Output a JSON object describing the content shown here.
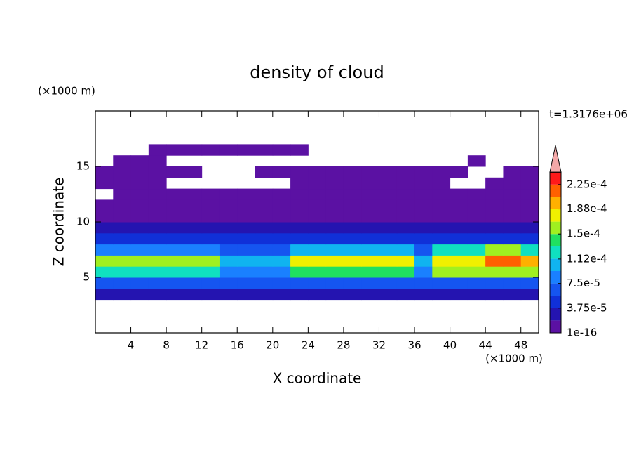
{
  "chart_data": {
    "type": "contour",
    "title": "density of cloud",
    "xlabel": "X coordinate",
    "ylabel": "Z coordinate",
    "xunit": "(×1000 m)",
    "yunit": "(×1000 m)",
    "annotation": "t=1.3176e+06",
    "xlim": [
      0,
      50
    ],
    "ylim": [
      0,
      20
    ],
    "xticks": [
      4,
      8,
      12,
      16,
      20,
      24,
      28,
      32,
      36,
      40,
      44,
      48
    ],
    "yticks": [
      5,
      10,
      15
    ],
    "x": [
      1,
      3,
      5,
      7,
      9,
      11,
      13,
      15,
      17,
      19,
      21,
      23,
      25,
      27,
      29,
      31,
      33,
      35,
      37,
      39,
      41,
      43,
      45,
      47,
      49
    ],
    "y": [
      3.5,
      4.5,
      5.5,
      6.5,
      7.5,
      8.5,
      9.5,
      10.5,
      11.5,
      12.5,
      13.5,
      14.5,
      15.5,
      16.5
    ],
    "z": [
      [
        2e-05,
        2e-05,
        2e-05,
        2e-05,
        2e-05,
        2e-05,
        2e-05,
        2e-05,
        2e-05,
        2e-05,
        2e-05,
        2e-05,
        2e-05,
        2e-05,
        2e-05,
        2e-05,
        2e-05,
        2e-05,
        2e-05,
        2e-05,
        2e-05,
        2e-05,
        2e-05,
        2e-05,
        2e-05
      ],
      [
        6e-05,
        6e-05,
        6e-05,
        6e-05,
        6e-05,
        6e-05,
        6e-05,
        6e-05,
        6e-05,
        6e-05,
        6e-05,
        6e-05,
        6e-05,
        6e-05,
        6e-05,
        6e-05,
        6e-05,
        6e-05,
        6e-05,
        6e-05,
        6e-05,
        6e-05,
        6e-05,
        6e-05,
        6e-05
      ],
      [
        0.00013,
        0.00013,
        0.00013,
        0.00013,
        0.00013,
        0.00013,
        0.00013,
        9e-05,
        9e-05,
        9e-05,
        9e-05,
        0.00014,
        0.00014,
        0.00014,
        0.00014,
        0.00014,
        0.00014,
        0.00014,
        9e-05,
        0.00015,
        0.00015,
        0.00015,
        0.00015,
        0.00015,
        0.00015
      ],
      [
        0.000165,
        0.000165,
        0.000165,
        0.000165,
        0.000165,
        0.000165,
        0.000165,
        0.0001,
        0.0001,
        0.0001,
        0.0001,
        0.000175,
        0.000175,
        0.000175,
        0.000175,
        0.000175,
        0.000175,
        0.000175,
        0.00011,
        0.00017,
        0.00017,
        0.00017,
        0.00021,
        0.00021,
        0.00019
      ],
      [
        9e-05,
        9e-05,
        9e-05,
        9e-05,
        9e-05,
        9e-05,
        9e-05,
        6e-05,
        6e-05,
        6e-05,
        6e-05,
        0.00011,
        0.00011,
        0.00011,
        0.00011,
        0.00011,
        0.00011,
        0.00011,
        6e-05,
        0.00012,
        0.00012,
        0.00012,
        0.00016,
        0.00016,
        0.00013
      ],
      [
        4e-05,
        4e-05,
        4e-05,
        4e-05,
        4e-05,
        4e-05,
        4e-05,
        4e-05,
        4e-05,
        4e-05,
        4e-05,
        4e-05,
        4e-05,
        4e-05,
        4e-05,
        4e-05,
        4e-05,
        4e-05,
        4e-05,
        4e-05,
        4e-05,
        4e-05,
        4e-05,
        4e-05,
        4e-05
      ],
      [
        2.5e-05,
        2.5e-05,
        2.5e-05,
        2.5e-05,
        2.5e-05,
        2.5e-05,
        2.5e-05,
        2.5e-05,
        2.5e-05,
        2.5e-05,
        2.5e-05,
        2.5e-05,
        2.5e-05,
        2.5e-05,
        2.5e-05,
        2.5e-05,
        2.5e-05,
        2.5e-05,
        2.5e-05,
        2.5e-05,
        2.5e-05,
        2.5e-05,
        2.5e-05,
        2.5e-05,
        2.5e-05
      ],
      [
        1.5e-05,
        1.5e-05,
        1.5e-05,
        1.5e-05,
        1.5e-05,
        1.5e-05,
        1.5e-05,
        1.5e-05,
        1.5e-05,
        1.5e-05,
        1.5e-05,
        1.5e-05,
        1.5e-05,
        1.5e-05,
        1.5e-05,
        1.5e-05,
        1.5e-05,
        1.5e-05,
        1.5e-05,
        1.5e-05,
        1.5e-05,
        1.5e-05,
        1.5e-05,
        1.5e-05,
        1.5e-05
      ],
      [
        1.5e-05,
        1.5e-05,
        1.5e-05,
        1.5e-05,
        1.5e-05,
        1.5e-05,
        1.5e-05,
        1.5e-05,
        1.5e-05,
        1.5e-05,
        1.5e-05,
        1.5e-05,
        1.5e-05,
        1.5e-05,
        1.5e-05,
        1.5e-05,
        1.5e-05,
        1.5e-05,
        1.5e-05,
        1.5e-05,
        1.5e-05,
        1.5e-05,
        1.5e-05,
        1.5e-05,
        1.5e-05
      ],
      [
        null,
        1e-05,
        1e-05,
        1e-05,
        1e-05,
        1e-05,
        1e-05,
        1e-05,
        1e-05,
        1e-05,
        1e-05,
        1e-05,
        1e-05,
        1e-05,
        1e-05,
        1e-05,
        1e-05,
        1e-05,
        1e-05,
        1e-05,
        1e-05,
        1e-05,
        1e-05,
        1e-05,
        1e-05
      ],
      [
        1e-05,
        1e-05,
        1e-05,
        1e-05,
        null,
        null,
        null,
        null,
        null,
        null,
        null,
        1e-05,
        1e-05,
        1e-05,
        1e-05,
        1e-05,
        1e-05,
        1e-05,
        1e-05,
        1e-05,
        null,
        null,
        1e-05,
        1e-05,
        1e-05
      ],
      [
        1e-05,
        1e-05,
        1e-05,
        1e-05,
        1e-05,
        1e-05,
        null,
        null,
        null,
        1e-05,
        1e-05,
        1e-05,
        1e-05,
        1e-05,
        1e-05,
        1e-05,
        1e-05,
        1e-05,
        1e-05,
        1e-05,
        1e-05,
        null,
        null,
        1e-05,
        1e-05
      ],
      [
        null,
        1e-05,
        1e-05,
        1e-05,
        null,
        null,
        null,
        null,
        null,
        null,
        null,
        null,
        null,
        null,
        null,
        null,
        null,
        null,
        null,
        null,
        null,
        1e-05,
        null,
        null,
        null
      ],
      [
        null,
        null,
        null,
        1e-05,
        1e-05,
        1e-05,
        1e-05,
        1e-05,
        1e-05,
        1e-05,
        1e-05,
        1e-05,
        null,
        null,
        null,
        null,
        null,
        null,
        null,
        null,
        null,
        null,
        null,
        null,
        null
      ]
    ],
    "levels": [
      1e-16,
      1.875e-05,
      3.75e-05,
      5.625e-05,
      7.5e-05,
      9.375e-05,
      0.0001125,
      0.00013125,
      0.00015,
      0.00016875,
      0.0001875,
      0.00020625,
      0.000225,
      0.00024375
    ],
    "colors": [
      "#5b11a3",
      "#2414b0",
      "#1030d8",
      "#1555f0",
      "#1a80ff",
      "#10b4f0",
      "#10e0c0",
      "#20e060",
      "#a0f020",
      "#f0f000",
      "#ffb000",
      "#ff6000",
      "#ff1a1a"
    ],
    "extend_color": "#f4a8a8",
    "cticks": [
      1e-16,
      {
        "value": 3.75e-05,
        "label": "3.75e-5"
      },
      {
        "value": 7.5e-05,
        "label": "7.5e-5"
      },
      {
        "value": 0.000112,
        "label": "1.12e-4"
      },
      {
        "value": 0.00015,
        "label": "1.5e-4"
      },
      {
        "value": 0.000188,
        "label": "1.88e-4"
      },
      {
        "value": 0.000225,
        "label": "2.25e-4"
      }
    ]
  }
}
